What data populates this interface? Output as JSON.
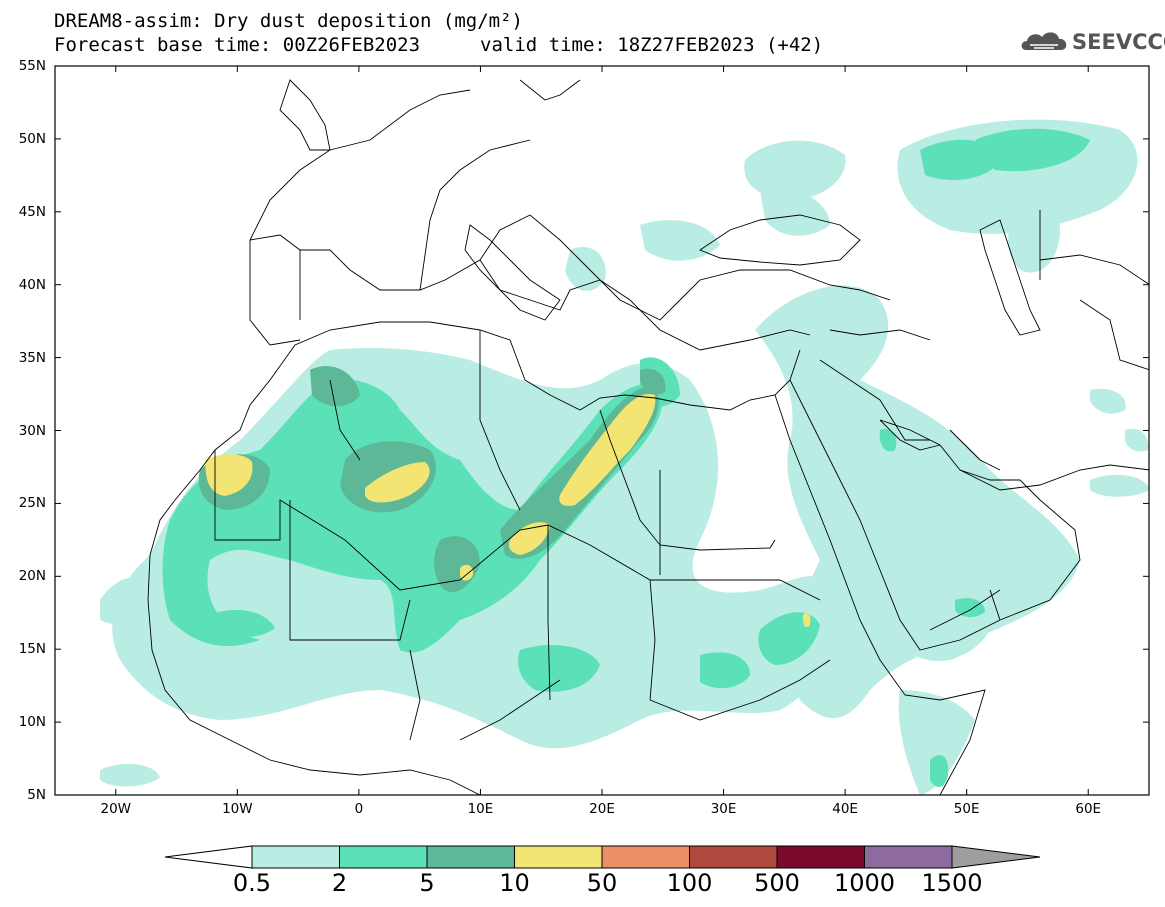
{
  "header": {
    "title_line1": "DREAM8-assim: Dry dust deposition (mg/m²)",
    "title_line2": "Forecast base time: 00Z26FEB2023",
    "valid_time": "valid time: 18Z27FEB2023 (+42)",
    "logo_text": "SEEVCCC",
    "logo_icon": "cloud-icon"
  },
  "map": {
    "lat_labels": [
      "55N",
      "50N",
      "45N",
      "40N",
      "35N",
      "30N",
      "25N",
      "20N",
      "15N",
      "10N",
      "5N"
    ],
    "lon_labels": [
      "20W",
      "10W",
      "0",
      "10E",
      "20E",
      "30E",
      "40E",
      "50E",
      "60E"
    ],
    "lon_range": [
      -25,
      65
    ],
    "lat_range": [
      5,
      55
    ]
  },
  "colorbar": {
    "labels": [
      "0.5",
      "2",
      "5",
      "10",
      "50",
      "100",
      "500",
      "1000",
      "1500"
    ],
    "colors": [
      "#b9ede4",
      "#5ce0b8",
      "#5cb896",
      "#f2e573",
      "#ec9167",
      "#ad4a3d",
      "#7c0a2b",
      "#8d6aa0"
    ],
    "overflow_color": "#9e9e9e",
    "underflow_color": "#ffffff"
  }
}
